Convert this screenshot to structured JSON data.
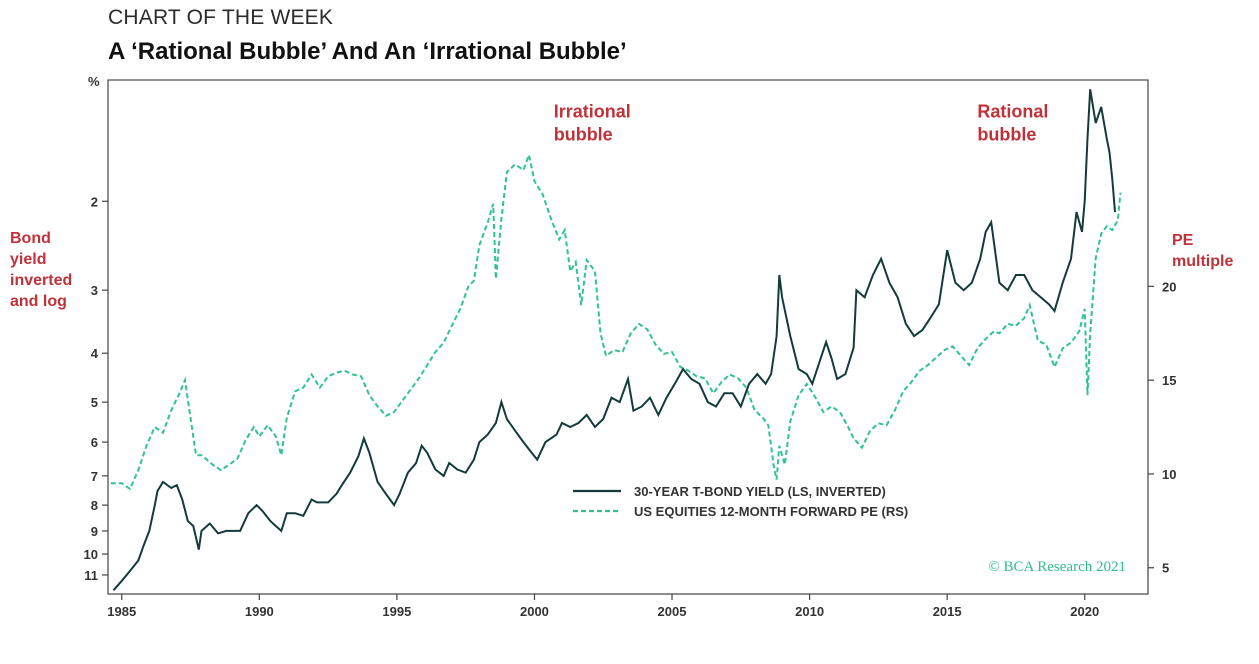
{
  "header": {
    "kicker": "CHART OF THE WEEK",
    "title": "A ‘Rational Bubble’ And An ‘Irrational Bubble’"
  },
  "left_axis_label": "Bond yield inverted and log",
  "right_axis_label": "PE multiple",
  "credit": "© BCA Research 2021",
  "colors": {
    "yield_line": "#123b3a",
    "pe_line": "#2fc48f",
    "annotation": "#c0323a"
  },
  "chart_data": {
    "type": "line",
    "x_range": [
      1984.5,
      2022.3
    ],
    "x_ticks": [
      "1985",
      "1990",
      "1995",
      "2000",
      "2005",
      "2010",
      "2015",
      "2020"
    ],
    "left_axis": {
      "unit": "%",
      "scale": "log, inverted",
      "ylim": [
        1.15,
        12
      ],
      "ticks": [
        "2",
        "3",
        "4",
        "5",
        "6",
        "7",
        "8",
        "9",
        "10",
        "11"
      ]
    },
    "right_axis": {
      "scale": "linear",
      "ylim": [
        3.6,
        31.0
      ],
      "ticks": [
        "5",
        "10",
        "15",
        "20"
      ]
    },
    "annotations": [
      {
        "text": [
          "Irrational",
          "bubble"
        ],
        "x": 2000.7,
        "y_right": 29.0
      },
      {
        "text": [
          "Rational",
          "bubble"
        ],
        "x": 2016.1,
        "y_right": 29.0
      }
    ],
    "series": [
      {
        "name": "30-YEAR T-BOND YIELD (LS, INVERTED)",
        "axis": "left",
        "style": "solid",
        "points": [
          [
            1984.7,
            11.8
          ],
          [
            1985.0,
            11.3
          ],
          [
            1985.3,
            10.8
          ],
          [
            1985.6,
            10.3
          ],
          [
            1985.8,
            9.6
          ],
          [
            1986.0,
            9.0
          ],
          [
            1986.2,
            8.0
          ],
          [
            1986.3,
            7.5
          ],
          [
            1986.5,
            7.2
          ],
          [
            1986.8,
            7.4
          ],
          [
            1987.0,
            7.3
          ],
          [
            1987.2,
            7.8
          ],
          [
            1987.4,
            8.6
          ],
          [
            1987.6,
            8.8
          ],
          [
            1987.8,
            9.8
          ],
          [
            1987.9,
            9.0
          ],
          [
            1988.2,
            8.7
          ],
          [
            1988.5,
            9.1
          ],
          [
            1988.8,
            9.0
          ],
          [
            1989.0,
            9.0
          ],
          [
            1989.3,
            9.0
          ],
          [
            1989.6,
            8.3
          ],
          [
            1989.9,
            8.0
          ],
          [
            1990.1,
            8.2
          ],
          [
            1990.4,
            8.6
          ],
          [
            1990.6,
            8.8
          ],
          [
            1990.8,
            9.0
          ],
          [
            1991.0,
            8.3
          ],
          [
            1991.3,
            8.3
          ],
          [
            1991.6,
            8.4
          ],
          [
            1991.9,
            7.8
          ],
          [
            1992.1,
            7.9
          ],
          [
            1992.5,
            7.9
          ],
          [
            1992.8,
            7.6
          ],
          [
            1993.0,
            7.3
          ],
          [
            1993.3,
            6.9
          ],
          [
            1993.6,
            6.4
          ],
          [
            1993.8,
            5.9
          ],
          [
            1994.0,
            6.3
          ],
          [
            1994.3,
            7.2
          ],
          [
            1994.6,
            7.6
          ],
          [
            1994.9,
            8.0
          ],
          [
            1995.1,
            7.6
          ],
          [
            1995.4,
            6.9
          ],
          [
            1995.7,
            6.6
          ],
          [
            1995.9,
            6.1
          ],
          [
            1996.1,
            6.3
          ],
          [
            1996.4,
            6.8
          ],
          [
            1996.7,
            7.0
          ],
          [
            1996.9,
            6.6
          ],
          [
            1997.2,
            6.8
          ],
          [
            1997.5,
            6.9
          ],
          [
            1997.8,
            6.5
          ],
          [
            1998.0,
            6.0
          ],
          [
            1998.3,
            5.8
          ],
          [
            1998.6,
            5.5
          ],
          [
            1998.8,
            5.0
          ],
          [
            1999.0,
            5.4
          ],
          [
            1999.3,
            5.7
          ],
          [
            1999.6,
            6.0
          ],
          [
            1999.9,
            6.3
          ],
          [
            2000.1,
            6.5
          ],
          [
            2000.4,
            6.0
          ],
          [
            2000.8,
            5.8
          ],
          [
            2001.0,
            5.5
          ],
          [
            2001.3,
            5.6
          ],
          [
            2001.6,
            5.5
          ],
          [
            2001.9,
            5.3
          ],
          [
            2002.2,
            5.6
          ],
          [
            2002.5,
            5.4
          ],
          [
            2002.8,
            4.9
          ],
          [
            2003.1,
            5.0
          ],
          [
            2003.4,
            4.5
          ],
          [
            2003.6,
            5.2
          ],
          [
            2003.9,
            5.1
          ],
          [
            2004.2,
            4.9
          ],
          [
            2004.5,
            5.3
          ],
          [
            2004.8,
            4.9
          ],
          [
            2005.1,
            4.6
          ],
          [
            2005.4,
            4.3
          ],
          [
            2005.7,
            4.5
          ],
          [
            2006.0,
            4.6
          ],
          [
            2006.3,
            5.0
          ],
          [
            2006.6,
            5.1
          ],
          [
            2006.9,
            4.8
          ],
          [
            2007.2,
            4.8
          ],
          [
            2007.5,
            5.1
          ],
          [
            2007.8,
            4.6
          ],
          [
            2008.1,
            4.4
          ],
          [
            2008.4,
            4.6
          ],
          [
            2008.6,
            4.4
          ],
          [
            2008.8,
            3.7
          ],
          [
            2008.9,
            2.8
          ],
          [
            2009.0,
            3.1
          ],
          [
            2009.3,
            3.7
          ],
          [
            2009.6,
            4.3
          ],
          [
            2009.9,
            4.4
          ],
          [
            2010.1,
            4.6
          ],
          [
            2010.4,
            4.1
          ],
          [
            2010.6,
            3.8
          ],
          [
            2010.8,
            4.1
          ],
          [
            2011.0,
            4.5
          ],
          [
            2011.3,
            4.4
          ],
          [
            2011.6,
            3.9
          ],
          [
            2011.7,
            3.0
          ],
          [
            2012.0,
            3.1
          ],
          [
            2012.3,
            2.8
          ],
          [
            2012.6,
            2.6
          ],
          [
            2012.9,
            2.9
          ],
          [
            2013.2,
            3.1
          ],
          [
            2013.5,
            3.5
          ],
          [
            2013.8,
            3.7
          ],
          [
            2014.1,
            3.6
          ],
          [
            2014.4,
            3.4
          ],
          [
            2014.7,
            3.2
          ],
          [
            2015.0,
            2.5
          ],
          [
            2015.3,
            2.9
          ],
          [
            2015.6,
            3.0
          ],
          [
            2015.9,
            2.9
          ],
          [
            2016.2,
            2.6
          ],
          [
            2016.4,
            2.3
          ],
          [
            2016.6,
            2.2
          ],
          [
            2016.9,
            2.9
          ],
          [
            2017.2,
            3.0
          ],
          [
            2017.5,
            2.8
          ],
          [
            2017.8,
            2.8
          ],
          [
            2018.1,
            3.0
          ],
          [
            2018.4,
            3.1
          ],
          [
            2018.7,
            3.2
          ],
          [
            2018.9,
            3.3
          ],
          [
            2019.2,
            2.9
          ],
          [
            2019.5,
            2.6
          ],
          [
            2019.7,
            2.1
          ],
          [
            2019.9,
            2.3
          ],
          [
            2020.0,
            2.0
          ],
          [
            2020.1,
            1.5
          ],
          [
            2020.2,
            1.2
          ],
          [
            2020.4,
            1.4
          ],
          [
            2020.6,
            1.3
          ],
          [
            2020.8,
            1.5
          ],
          [
            2020.9,
            1.6
          ],
          [
            2021.0,
            1.8
          ],
          [
            2021.1,
            2.1
          ]
        ]
      },
      {
        "name": "US EQUITIES 12-MONTH FORWARD PE (RS)",
        "axis": "right",
        "style": "dashed",
        "points": [
          [
            1984.6,
            9.5
          ],
          [
            1985.0,
            9.5
          ],
          [
            1985.3,
            9.2
          ],
          [
            1985.6,
            10.2
          ],
          [
            1985.9,
            11.5
          ],
          [
            1986.2,
            12.5
          ],
          [
            1986.5,
            12.2
          ],
          [
            1986.8,
            13.4
          ],
          [
            1987.1,
            14.3
          ],
          [
            1987.3,
            15.0
          ],
          [
            1987.5,
            13.0
          ],
          [
            1987.7,
            11.0
          ],
          [
            1987.9,
            11.0
          ],
          [
            1988.3,
            10.5
          ],
          [
            1988.6,
            10.2
          ],
          [
            1988.9,
            10.5
          ],
          [
            1989.2,
            10.8
          ],
          [
            1989.5,
            11.8
          ],
          [
            1989.8,
            12.5
          ],
          [
            1990.0,
            12.0
          ],
          [
            1990.3,
            12.6
          ],
          [
            1990.6,
            12.0
          ],
          [
            1990.8,
            11.0
          ],
          [
            1991.0,
            13.0
          ],
          [
            1991.3,
            14.4
          ],
          [
            1991.6,
            14.6
          ],
          [
            1991.9,
            15.3
          ],
          [
            1992.2,
            14.6
          ],
          [
            1992.5,
            15.2
          ],
          [
            1992.8,
            15.4
          ],
          [
            1993.1,
            15.5
          ],
          [
            1993.4,
            15.3
          ],
          [
            1993.7,
            15.2
          ],
          [
            1994.0,
            14.2
          ],
          [
            1994.3,
            13.6
          ],
          [
            1994.6,
            13.1
          ],
          [
            1994.9,
            13.3
          ],
          [
            1995.2,
            13.9
          ],
          [
            1995.5,
            14.5
          ],
          [
            1995.8,
            15.1
          ],
          [
            1996.1,
            15.8
          ],
          [
            1996.4,
            16.5
          ],
          [
            1996.7,
            17.0
          ],
          [
            1997.0,
            17.9
          ],
          [
            1997.3,
            18.8
          ],
          [
            1997.6,
            20.0
          ],
          [
            1997.8,
            20.3
          ],
          [
            1998.0,
            22.2
          ],
          [
            1998.3,
            23.4
          ],
          [
            1998.5,
            24.4
          ],
          [
            1998.6,
            20.4
          ],
          [
            1998.8,
            23.6
          ],
          [
            1999.0,
            26.1
          ],
          [
            1999.3,
            26.5
          ],
          [
            1999.6,
            26.2
          ],
          [
            1999.8,
            27.0
          ],
          [
            2000.0,
            25.6
          ],
          [
            2000.3,
            24.9
          ],
          [
            2000.6,
            23.6
          ],
          [
            2000.9,
            22.5
          ],
          [
            2001.1,
            23.0
          ],
          [
            2001.3,
            20.8
          ],
          [
            2001.5,
            21.3
          ],
          [
            2001.7,
            19.0
          ],
          [
            2001.9,
            21.4
          ],
          [
            2002.2,
            20.8
          ],
          [
            2002.4,
            17.5
          ],
          [
            2002.6,
            16.3
          ],
          [
            2002.9,
            16.6
          ],
          [
            2003.2,
            16.5
          ],
          [
            2003.5,
            17.5
          ],
          [
            2003.8,
            18.0
          ],
          [
            2004.1,
            17.7
          ],
          [
            2004.4,
            16.9
          ],
          [
            2004.7,
            16.4
          ],
          [
            2005.0,
            16.5
          ],
          [
            2005.3,
            15.7
          ],
          [
            2005.6,
            15.5
          ],
          [
            2005.9,
            15.2
          ],
          [
            2006.2,
            15.1
          ],
          [
            2006.5,
            14.3
          ],
          [
            2006.8,
            14.9
          ],
          [
            2007.1,
            15.3
          ],
          [
            2007.4,
            15.1
          ],
          [
            2007.7,
            14.6
          ],
          [
            2008.0,
            13.4
          ],
          [
            2008.3,
            13.0
          ],
          [
            2008.5,
            12.6
          ],
          [
            2008.7,
            10.4
          ],
          [
            2008.8,
            9.7
          ],
          [
            2008.9,
            11.5
          ],
          [
            2009.1,
            10.5
          ],
          [
            2009.3,
            12.8
          ],
          [
            2009.6,
            14.2
          ],
          [
            2009.9,
            14.8
          ],
          [
            2010.2,
            14.1
          ],
          [
            2010.5,
            13.3
          ],
          [
            2010.8,
            13.6
          ],
          [
            2011.1,
            13.3
          ],
          [
            2011.4,
            12.5
          ],
          [
            2011.6,
            11.9
          ],
          [
            2011.9,
            11.4
          ],
          [
            2012.2,
            12.3
          ],
          [
            2012.5,
            12.7
          ],
          [
            2012.8,
            12.6
          ],
          [
            2013.1,
            13.4
          ],
          [
            2013.4,
            14.4
          ],
          [
            2013.7,
            14.9
          ],
          [
            2014.0,
            15.5
          ],
          [
            2014.3,
            15.8
          ],
          [
            2014.6,
            16.2
          ],
          [
            2014.9,
            16.6
          ],
          [
            2015.2,
            16.8
          ],
          [
            2015.5,
            16.3
          ],
          [
            2015.8,
            15.8
          ],
          [
            2016.1,
            16.7
          ],
          [
            2016.4,
            17.2
          ],
          [
            2016.7,
            17.6
          ],
          [
            2016.9,
            17.5
          ],
          [
            2017.2,
            18.0
          ],
          [
            2017.5,
            17.9
          ],
          [
            2017.8,
            18.3
          ],
          [
            2018.0,
            19.0
          ],
          [
            2018.3,
            17.1
          ],
          [
            2018.6,
            16.9
          ],
          [
            2018.9,
            15.7
          ],
          [
            2019.2,
            16.7
          ],
          [
            2019.5,
            17.0
          ],
          [
            2019.8,
            17.6
          ],
          [
            2020.0,
            18.8
          ],
          [
            2020.1,
            14.2
          ],
          [
            2020.2,
            17.5
          ],
          [
            2020.4,
            21.5
          ],
          [
            2020.6,
            22.8
          ],
          [
            2020.8,
            23.2
          ],
          [
            2021.0,
            23.0
          ],
          [
            2021.2,
            23.5
          ],
          [
            2021.3,
            25.0
          ]
        ]
      }
    ]
  }
}
